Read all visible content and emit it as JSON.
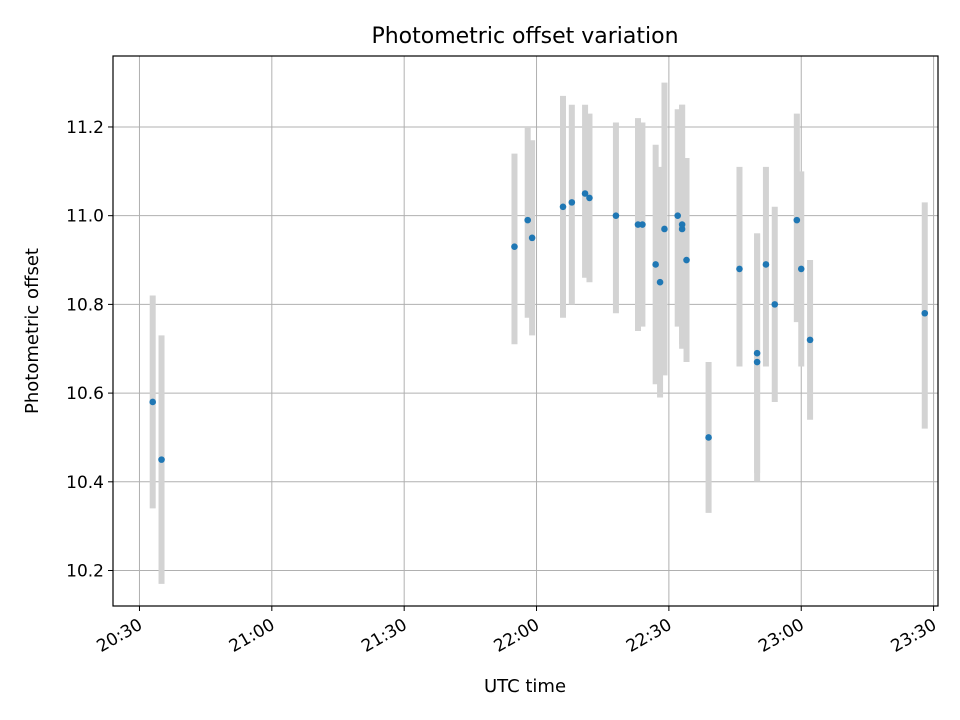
{
  "chart_data": {
    "type": "scatter",
    "title": "Photometric offset variation",
    "xlabel": "UTC time",
    "ylabel": "Photometric offset",
    "x_ticks": [
      "20:30",
      "21:00",
      "21:30",
      "22:00",
      "22:30",
      "23:00",
      "23:30"
    ],
    "y_ticks": [
      "10.2",
      "10.4",
      "10.6",
      "10.8",
      "11.0",
      "11.2"
    ],
    "xlim": [
      "20:24",
      "23:31"
    ],
    "ylim": [
      10.12,
      11.36
    ],
    "grid": true,
    "colors": {
      "marker": "#1f77b4",
      "errorbar": "#d3d3d3",
      "grid": "#b0b0b0",
      "axes": "#000000"
    },
    "points": [
      {
        "x": "20:33",
        "y": 10.58,
        "lo": 10.34,
        "hi": 10.82
      },
      {
        "x": "20:35",
        "y": 10.45,
        "lo": 10.17,
        "hi": 10.73
      },
      {
        "x": "21:55",
        "y": 10.93,
        "lo": 10.71,
        "hi": 11.14
      },
      {
        "x": "21:58",
        "y": 10.99,
        "lo": 10.77,
        "hi": 11.2
      },
      {
        "x": "21:59",
        "y": 10.95,
        "lo": 10.73,
        "hi": 11.17
      },
      {
        "x": "22:06",
        "y": 11.02,
        "lo": 10.77,
        "hi": 11.27
      },
      {
        "x": "22:08",
        "y": 11.03,
        "lo": 10.8,
        "hi": 11.25
      },
      {
        "x": "22:11",
        "y": 11.05,
        "lo": 10.86,
        "hi": 11.25
      },
      {
        "x": "22:12",
        "y": 11.04,
        "lo": 10.85,
        "hi": 11.23
      },
      {
        "x": "22:18",
        "y": 11.0,
        "lo": 10.78,
        "hi": 11.21
      },
      {
        "x": "22:23",
        "y": 10.98,
        "lo": 10.74,
        "hi": 11.22
      },
      {
        "x": "22:24",
        "y": 10.98,
        "lo": 10.75,
        "hi": 11.21
      },
      {
        "x": "22:27",
        "y": 10.89,
        "lo": 10.62,
        "hi": 11.16
      },
      {
        "x": "22:28",
        "y": 10.85,
        "lo": 10.59,
        "hi": 11.11
      },
      {
        "x": "22:29",
        "y": 10.97,
        "lo": 10.64,
        "hi": 11.3
      },
      {
        "x": "22:32",
        "y": 11.0,
        "lo": 10.75,
        "hi": 11.24
      },
      {
        "x": "22:33",
        "y": 10.97,
        "lo": 10.7,
        "hi": 11.25
      },
      {
        "x": "22:33",
        "y": 10.98,
        "lo": 10.71,
        "hi": 11.25
      },
      {
        "x": "22:34",
        "y": 10.9,
        "lo": 10.67,
        "hi": 11.13
      },
      {
        "x": "22:39",
        "y": 10.5,
        "lo": 10.33,
        "hi": 10.67
      },
      {
        "x": "22:46",
        "y": 10.88,
        "lo": 10.66,
        "hi": 11.11
      },
      {
        "x": "22:50",
        "y": 10.67,
        "lo": 10.4,
        "hi": 10.96
      },
      {
        "x": "22:50",
        "y": 10.69,
        "lo": 10.42,
        "hi": 10.96
      },
      {
        "x": "22:52",
        "y": 10.89,
        "lo": 10.66,
        "hi": 11.11
      },
      {
        "x": "22:54",
        "y": 10.8,
        "lo": 10.58,
        "hi": 11.02
      },
      {
        "x": "22:59",
        "y": 10.99,
        "lo": 10.76,
        "hi": 11.23
      },
      {
        "x": "23:00",
        "y": 10.88,
        "lo": 10.66,
        "hi": 11.1
      },
      {
        "x": "23:02",
        "y": 10.72,
        "lo": 10.54,
        "hi": 10.9
      },
      {
        "x": "23:28",
        "y": 10.78,
        "lo": 10.52,
        "hi": 11.03
      }
    ]
  }
}
